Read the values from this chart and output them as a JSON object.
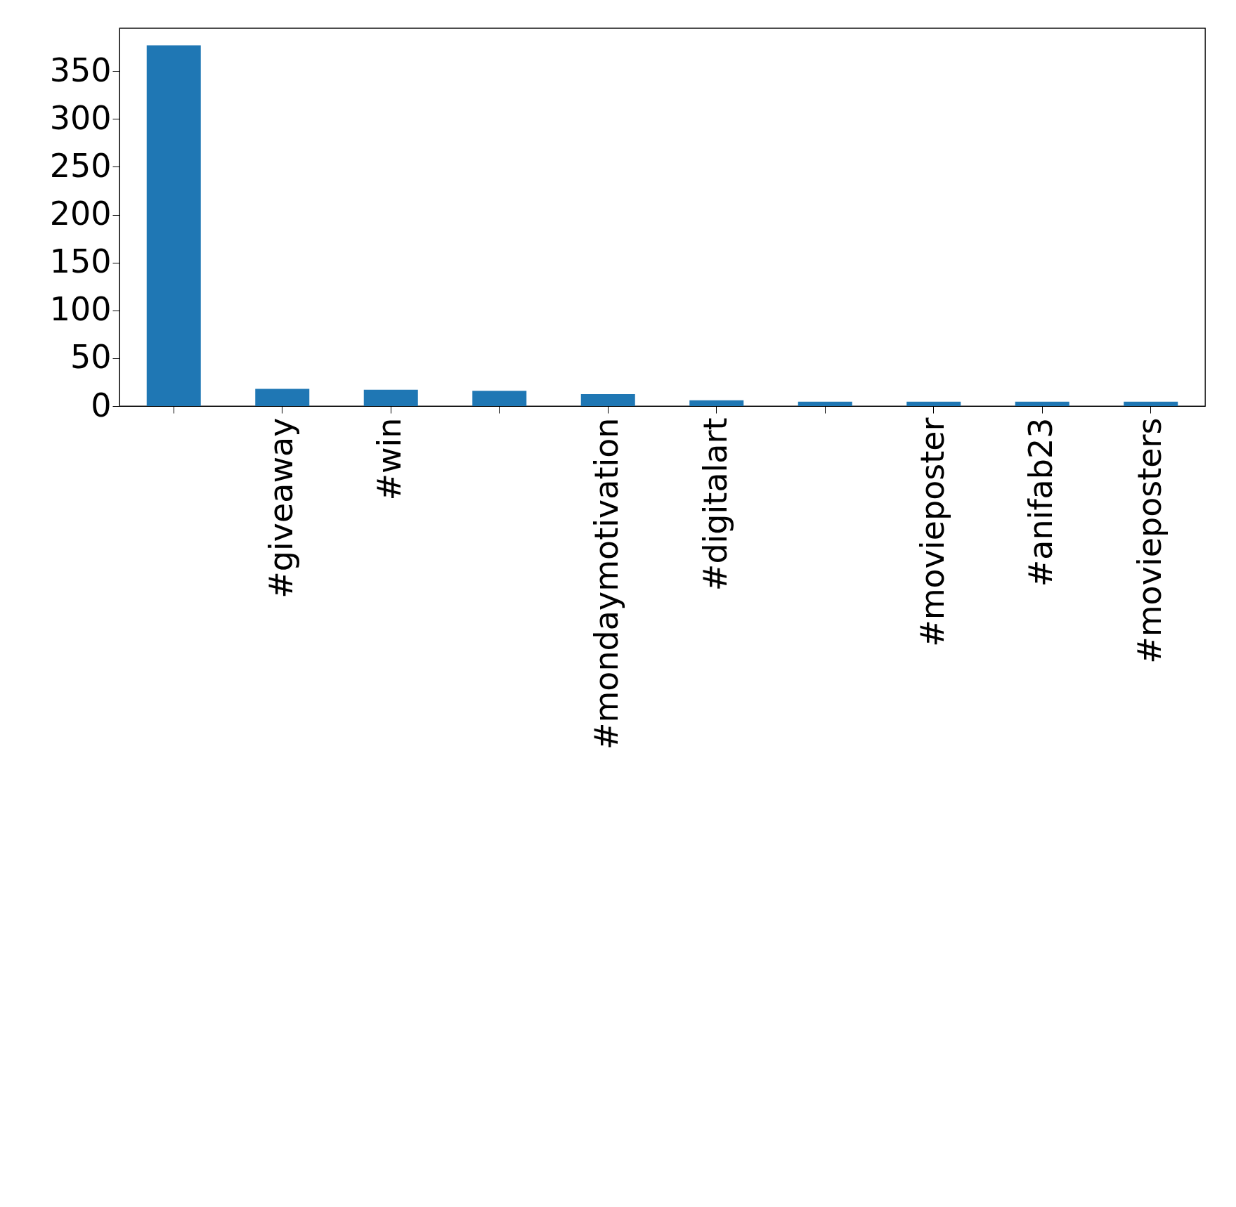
{
  "chart_data": {
    "type": "bar",
    "categories": [
      null,
      "#giveaway",
      "#win",
      null,
      "#mondaymotivation",
      "#digitalart",
      null,
      "#movieposter",
      "#anifab23",
      "#movieposters"
    ],
    "values": [
      377,
      18,
      17,
      16,
      12.5,
      6,
      4.5,
      4.5,
      4.5,
      4.5
    ],
    "color": "#1f77b4",
    "ylim": [
      0,
      395
    ],
    "yticks": [
      0,
      50,
      100,
      150,
      200,
      250,
      300,
      350
    ],
    "grid": false
  }
}
